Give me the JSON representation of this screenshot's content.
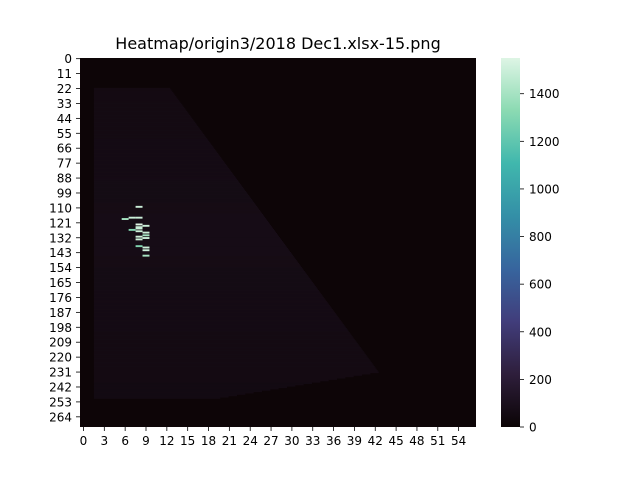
{
  "chart_data": {
    "type": "heatmap",
    "title": "Heatmap/origin3/2018 Dec1.xlsx-15.png",
    "xlabel": "",
    "ylabel": "",
    "n_cols": 57,
    "n_rows": 272,
    "x_tick_labels": [
      "0",
      "3",
      "6",
      "9",
      "12",
      "15",
      "18",
      "21",
      "24",
      "27",
      "30",
      "33",
      "36",
      "39",
      "42",
      "45",
      "48",
      "51",
      "54"
    ],
    "y_tick_labels": [
      "0",
      "11",
      "22",
      "33",
      "44",
      "55",
      "66",
      "77",
      "88",
      "99",
      "110",
      "121",
      "132",
      "143",
      "154",
      "165",
      "176",
      "187",
      "198",
      "209",
      "220",
      "231",
      "242",
      "253",
      "264"
    ],
    "colorbar": {
      "min": 0,
      "max": 1550,
      "ticks": [
        0,
        200,
        400,
        600,
        800,
        1000,
        1200,
        1400
      ],
      "tick_labels": [
        "0",
        "200",
        "400",
        "600",
        "800",
        "1000",
        "1200",
        "1400"
      ],
      "colormap": "mako",
      "colors": [
        "#0b0405",
        "#2e1e3b",
        "#413d7b",
        "#37659e",
        "#348fa7",
        "#40b7ad",
        "#8bdab2",
        "#def5e5"
      ]
    },
    "background_value": 10,
    "triangle_region": {
      "description": "low values ~40-100 in lower-left triangle bounded by diagonal from (col 13,row 22) to (col 43,row 231)",
      "typical_value": 70
    },
    "highlights": [
      {
        "row": 109,
        "col": 8,
        "value": 1500
      },
      {
        "row": 117,
        "col": 7,
        "value": 1500
      },
      {
        "row": 117,
        "col": 8,
        "value": 1500
      },
      {
        "row": 118,
        "col": 6,
        "value": 1400
      },
      {
        "row": 122,
        "col": 8,
        "value": 1550
      },
      {
        "row": 123,
        "col": 9,
        "value": 1500
      },
      {
        "row": 124,
        "col": 8,
        "value": 1500
      },
      {
        "row": 125,
        "col": 8,
        "value": 1500
      },
      {
        "row": 126,
        "col": 7,
        "value": 1300
      },
      {
        "row": 127,
        "col": 8,
        "value": 1500
      },
      {
        "row": 128,
        "col": 9,
        "value": 1500
      },
      {
        "row": 130,
        "col": 9,
        "value": 1400
      },
      {
        "row": 131,
        "col": 8,
        "value": 1500
      },
      {
        "row": 132,
        "col": 9,
        "value": 1500
      },
      {
        "row": 133,
        "col": 8,
        "value": 1500
      },
      {
        "row": 138,
        "col": 8,
        "value": 1300
      },
      {
        "row": 139,
        "col": 9,
        "value": 1500
      },
      {
        "row": 141,
        "col": 9,
        "value": 1500
      },
      {
        "row": 145,
        "col": 9,
        "value": 1400
      }
    ]
  }
}
